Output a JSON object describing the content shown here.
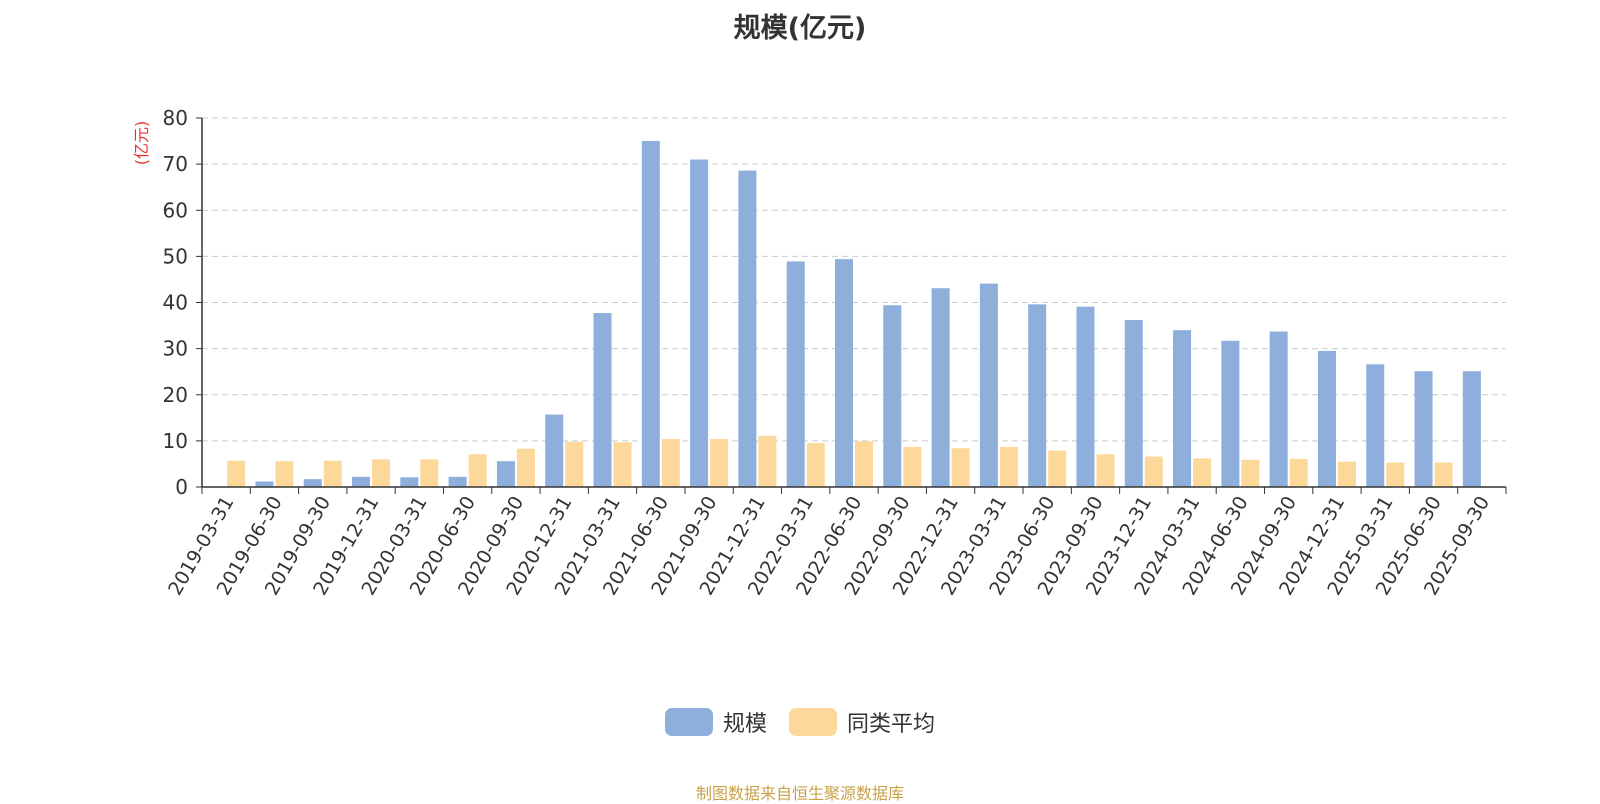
{
  "chart_data": {
    "type": "bar",
    "title": "规模(亿元)",
    "ylabel": "(亿元)",
    "xlabel": "",
    "ylim": [
      0,
      80
    ],
    "yticks": [
      0,
      10,
      20,
      30,
      40,
      50,
      60,
      70,
      80
    ],
    "grid": true,
    "legend_position": "bottom-center",
    "categories": [
      "2019-03-31",
      "2019-06-30",
      "2019-09-30",
      "2019-12-31",
      "2020-03-31",
      "2020-06-30",
      "2020-09-30",
      "2020-12-31",
      "2021-03-31",
      "2021-06-30",
      "2021-09-30",
      "2021-12-31",
      "2022-03-31",
      "2022-06-30",
      "2022-09-30",
      "2022-12-31",
      "2023-03-31",
      "2023-06-30",
      "2023-09-30",
      "2023-12-31",
      "2024-03-31",
      "2024-06-30",
      "2024-09-30",
      "2024-12-31",
      "2025-03-31",
      "2025-06-30",
      "2025-09-30"
    ],
    "series": [
      {
        "name": "规模",
        "color": "#8eaedb",
        "values": [
          null,
          1.2,
          1.7,
          2.2,
          2.1,
          2.2,
          5.6,
          15.7,
          37.7,
          75.0,
          71.0,
          68.6,
          48.9,
          49.4,
          39.4,
          43.1,
          44.1,
          39.6,
          39.1,
          36.2,
          34.0,
          31.7,
          33.7,
          29.5,
          26.6,
          25.1,
          25.1
        ]
      },
      {
        "name": "同类平均",
        "color": "#fdd89b",
        "values": [
          5.7,
          5.6,
          5.7,
          6.0,
          6.0,
          7.1,
          8.3,
          9.8,
          9.7,
          10.4,
          10.4,
          11.1,
          9.5,
          9.9,
          8.7,
          8.4,
          8.7,
          7.9,
          7.1,
          6.6,
          6.2,
          5.9,
          6.1,
          5.5,
          5.3,
          5.3,
          null
        ]
      }
    ]
  },
  "source_note": "制图数据来自恒生聚源数据库",
  "colors": {
    "axis": "#333333",
    "grid": "#cccccc",
    "ylabel": "#e8312f",
    "source_note": "#c8a24a"
  }
}
